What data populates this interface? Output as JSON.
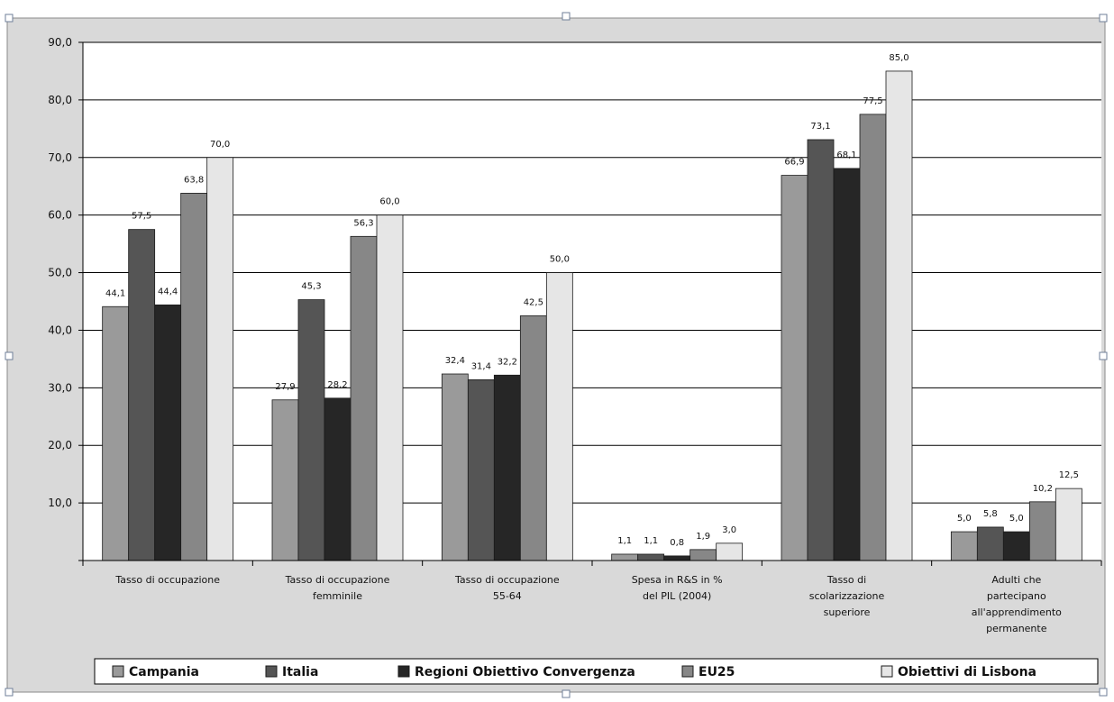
{
  "chart_data": {
    "type": "bar",
    "categories": [
      [
        "Tasso di occupazione"
      ],
      [
        "Tasso di occupazione",
        "femminile"
      ],
      [
        "Tasso di occupazione",
        "55-64"
      ],
      [
        "Spesa in R&S in %",
        "del PIL (2004)"
      ],
      [
        "Tasso di",
        "scolarizzazione",
        "superiore"
      ],
      [
        "Adulti che",
        "partecipano",
        "all'apprendimento",
        "permanente"
      ]
    ],
    "series": [
      {
        "name": "Campania",
        "color": "#9a9a9a",
        "values": [
          44.1,
          27.9,
          32.4,
          1.1,
          66.9,
          5.0
        ],
        "labels": [
          "44,1",
          "27,9",
          "32,4",
          "1,1",
          "66,9",
          "5,0"
        ]
      },
      {
        "name": "Italia",
        "color": "#555555",
        "values": [
          57.5,
          45.3,
          31.4,
          1.1,
          73.1,
          5.8
        ],
        "labels": [
          "57,5",
          "45,3",
          "31,4",
          "1,1",
          "73,1",
          "5,8"
        ]
      },
      {
        "name": "Regioni Obiettivo Convergenza",
        "color": "#262626",
        "values": [
          44.4,
          28.2,
          32.2,
          0.8,
          68.1,
          5.0
        ],
        "labels": [
          "44,4",
          "28,2",
          "32,2",
          "0,8",
          "68,1",
          "5,0"
        ]
      },
      {
        "name": "EU25",
        "color": "#878787",
        "values": [
          63.8,
          56.3,
          42.5,
          1.9,
          77.5,
          10.2
        ],
        "labels": [
          "63,8",
          "56,3",
          "42,5",
          "1,9",
          "77,5",
          "10,2"
        ]
      },
      {
        "name": "Obiettivi di Lisbona",
        "color": "#e6e6e6",
        "values": [
          70.0,
          60.0,
          50.0,
          3.0,
          85.0,
          12.5
        ],
        "labels": [
          "70,0",
          "60,0",
          "50,0",
          "3,0",
          "85,0",
          "12,5"
        ]
      }
    ],
    "ylim": [
      0,
      90
    ],
    "yticks": [
      {
        "value": 0,
        "label": ""
      },
      {
        "value": 10,
        "label": "10,0"
      },
      {
        "value": 20,
        "label": "20,0"
      },
      {
        "value": 30,
        "label": "30,0"
      },
      {
        "value": 40,
        "label": "40,0"
      },
      {
        "value": 50,
        "label": "50,0"
      },
      {
        "value": 60,
        "label": "60,0"
      },
      {
        "value": 70,
        "label": "70,0"
      },
      {
        "value": 80,
        "label": "80,0"
      },
      {
        "value": 90,
        "label": "90,0"
      }
    ],
    "grid": true,
    "legend_position": "bottom",
    "colors": {
      "outer_background": "#d9d9d9",
      "plot_background": "#ffffff",
      "gridline": "#000000",
      "axis": "#000000",
      "text": "#111111"
    }
  }
}
